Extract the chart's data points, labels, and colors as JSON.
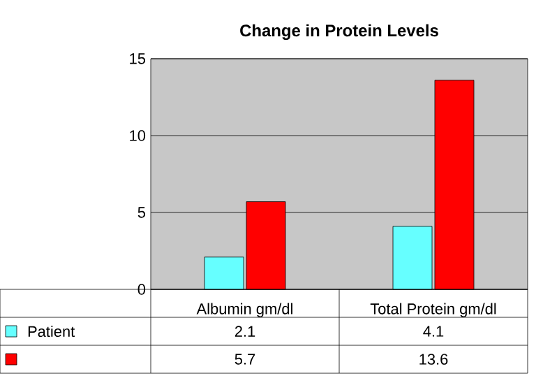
{
  "chart_data": {
    "type": "bar",
    "title": "Change in Protein Levels",
    "categories": [
      "Albumin gm/dl",
      "Total Protein gm/dl"
    ],
    "series": [
      {
        "name": "Patient",
        "color": "#66ffff",
        "values": [
          2.1,
          4.1
        ]
      },
      {
        "color": "#ff0000",
        "values": [
          5.7,
          13.6
        ]
      }
    ],
    "ylim": [
      0,
      15
    ],
    "yticks": [
      0,
      5,
      10,
      15
    ],
    "grid": "y",
    "data_labels": true
  }
}
